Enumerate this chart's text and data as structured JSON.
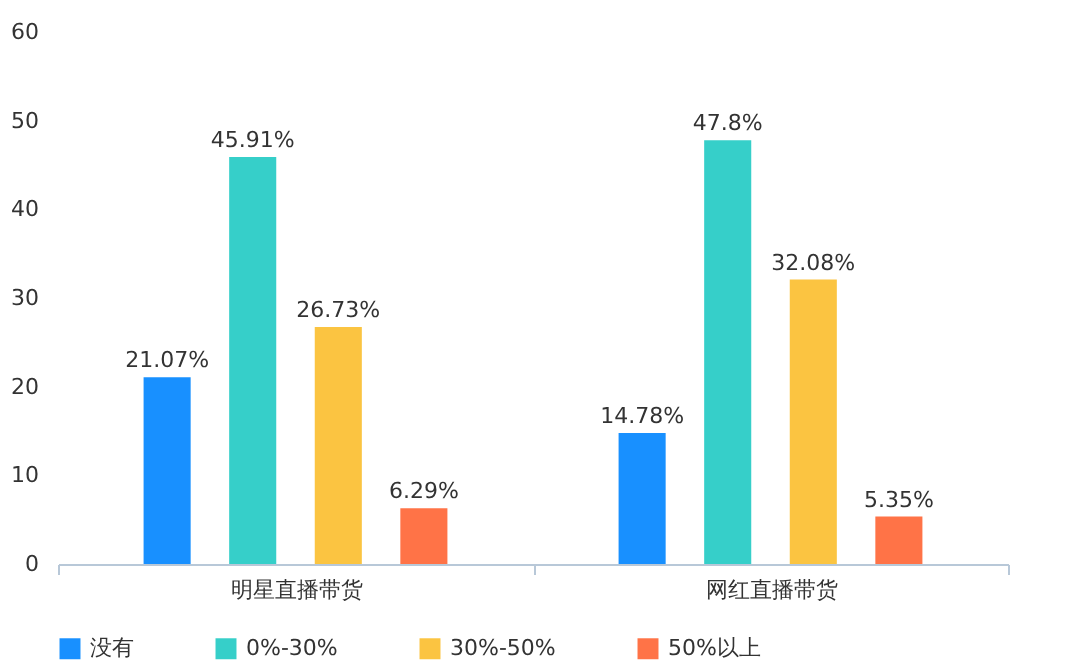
{
  "chart_data": {
    "type": "bar",
    "categories": [
      "明星直播带货",
      "网红直播带货"
    ],
    "series": [
      {
        "name": "没有",
        "color": "#1890ff",
        "values": [
          21.07,
          14.78
        ],
        "value_labels": [
          "21.07%",
          "14.78%"
        ]
      },
      {
        "name": "0%-30%",
        "color": "#36cfc9",
        "values": [
          45.91,
          47.8
        ],
        "value_labels": [
          "45.91%",
          "47.8%"
        ]
      },
      {
        "name": "30%-50%",
        "color": "#fbc441",
        "values": [
          26.73,
          32.08
        ],
        "value_labels": [
          "26.73%",
          "32.08%"
        ]
      },
      {
        "name": "50%以上",
        "color": "#ff7347",
        "values": [
          6.29,
          5.35
        ],
        "value_labels": [
          "6.29%",
          "5.35%"
        ]
      }
    ],
    "ylim": [
      0,
      60
    ],
    "yticks": [
      0,
      10,
      20,
      30,
      40,
      50,
      60
    ],
    "grid": false,
    "legend": "bottom"
  }
}
